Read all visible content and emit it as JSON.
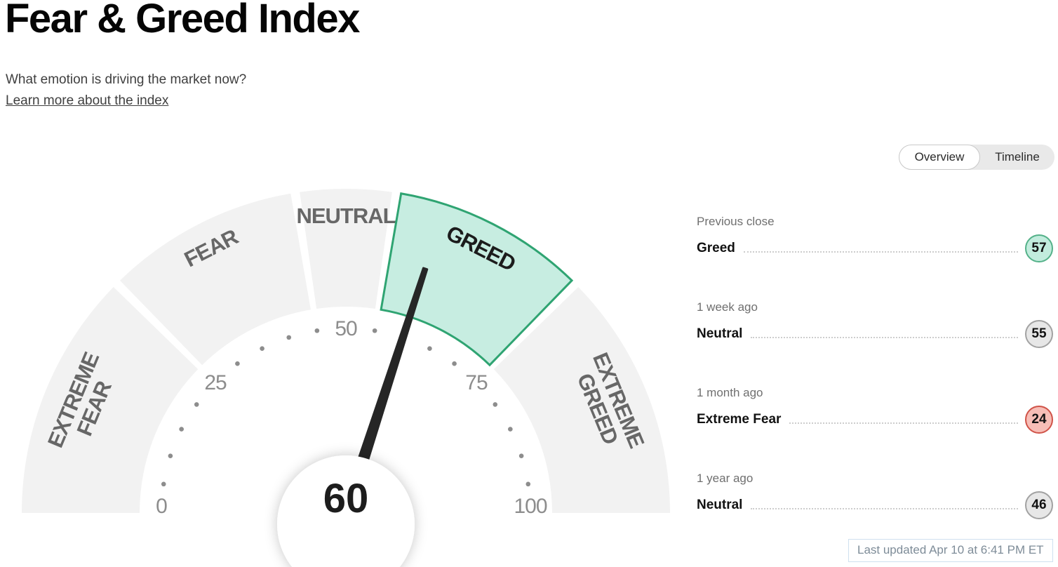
{
  "header": {
    "title": "Fear & Greed Index",
    "subtitle": "What emotion is driving the market now?",
    "learn_more": "Learn more about the index"
  },
  "view_toggle": {
    "options": [
      {
        "label": "Overview",
        "active": true
      },
      {
        "label": "Timeline",
        "active": false
      }
    ]
  },
  "chart_data": {
    "type": "gauge",
    "title": "Fear & Greed Index",
    "value": 60,
    "value_zone": "Greed",
    "min": 0,
    "max": 100,
    "axis_ticks": [
      0,
      25,
      50,
      75,
      100
    ],
    "dot_interval": 5,
    "segments": [
      {
        "label": "EXTREME FEAR",
        "lines": [
          "EXTREME",
          "FEAR"
        ],
        "from": 0,
        "to": 25,
        "highlighted": false
      },
      {
        "label": "FEAR",
        "lines": [
          "FEAR"
        ],
        "from": 25,
        "to": 45,
        "highlighted": false
      },
      {
        "label": "NEUTRAL",
        "lines": [
          "NEUTRAL"
        ],
        "from": 45,
        "to": 55,
        "highlighted": false
      },
      {
        "label": "GREED",
        "lines": [
          "GREED"
        ],
        "from": 55,
        "to": 75,
        "highlighted": true
      },
      {
        "label": "EXTREME GREED",
        "lines": [
          "EXTREME",
          "GREED"
        ],
        "from": 75,
        "to": 100,
        "highlighted": false
      }
    ],
    "colors": {
      "segment_inactive": "#f2f2f2",
      "segment_active_fill": "#c7ede1",
      "segment_active_stroke": "#2fa472",
      "label_inactive": "#676767",
      "label_active": "#1c1c1c",
      "axis_text": "#8d8d8d",
      "needle": "#262626",
      "center_value": "#1d1d1d"
    }
  },
  "history": {
    "items": [
      {
        "period": "Previous close",
        "label": "Greed",
        "value": 57,
        "tone": "greed"
      },
      {
        "period": "1 week ago",
        "label": "Neutral",
        "value": 55,
        "tone": "neutral"
      },
      {
        "period": "1 month ago",
        "label": "Extreme Fear",
        "value": 24,
        "tone": "extreme_fear"
      },
      {
        "period": "1 year ago",
        "label": "Neutral",
        "value": 46,
        "tone": "neutral"
      }
    ],
    "badge_colors": {
      "greed": {
        "fill": "#c2ecdd",
        "stroke": "#54b189"
      },
      "neutral": {
        "fill": "#e7e7e7",
        "stroke": "#a2a2a2"
      },
      "extreme_fear": {
        "fill": "#f7beb7",
        "stroke": "#d05348"
      }
    }
  },
  "footer": {
    "last_updated": "Last updated Apr 10 at 6:41 PM ET"
  }
}
